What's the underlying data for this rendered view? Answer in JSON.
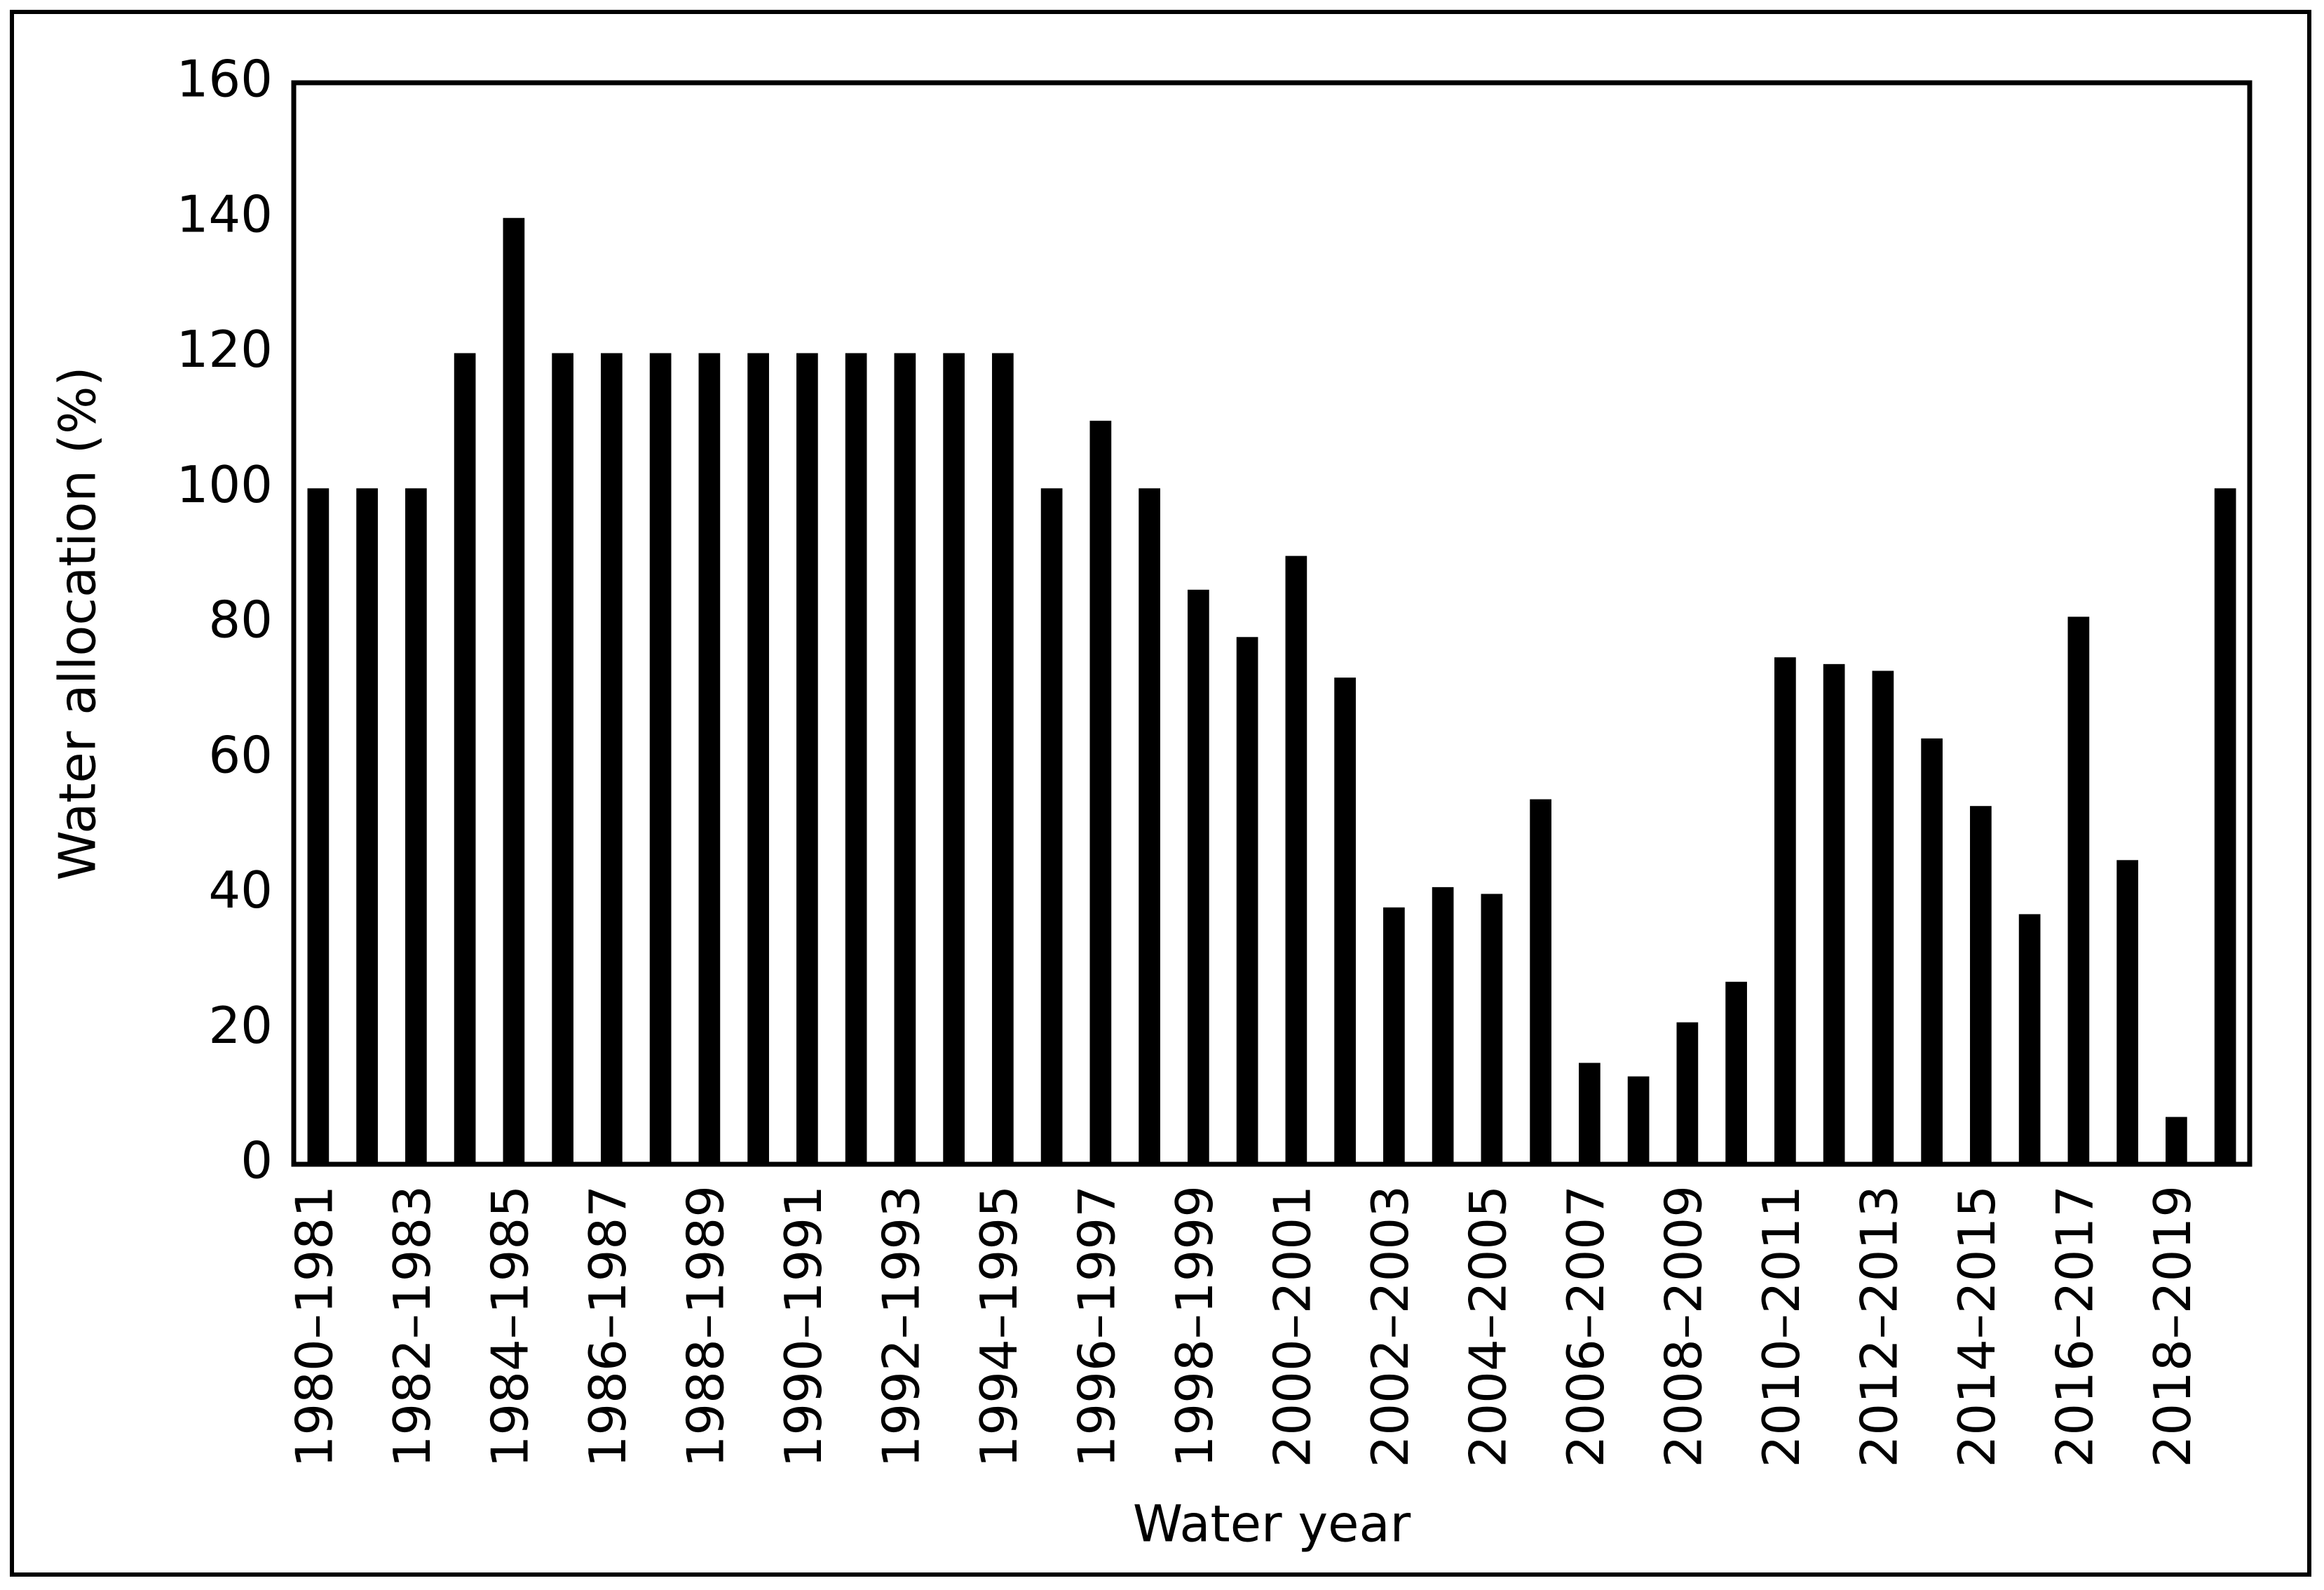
{
  "chart_data": {
    "type": "bar",
    "x_label": "Water year",
    "y_label": "Water allocation (%)",
    "categories": [
      "1980–1981",
      null,
      "1982–1983",
      null,
      "1984–1985",
      null,
      "1986–1987",
      null,
      "1988–1989",
      null,
      "1990–1991",
      null,
      "1992–1993",
      null,
      "1994–1995",
      null,
      "1996–1997",
      null,
      "1998–1999",
      null,
      "2000–2001",
      null,
      "2002–2003",
      null,
      "2004–2005",
      null,
      "2006–2007",
      null,
      "2008–2009",
      null,
      "2010–2011",
      null,
      "2012–2013",
      null,
      "2014–2015",
      null,
      "2016–2017",
      null,
      "2018–2019",
      null
    ],
    "values": [
      100,
      100,
      100,
      120,
      140,
      120,
      120,
      120,
      120,
      120,
      120,
      120,
      120,
      120,
      120,
      100,
      110,
      100,
      85,
      78,
      90,
      72,
      38,
      41,
      40,
      54,
      15,
      13,
      21,
      27,
      75,
      74,
      73,
      63,
      53,
      37,
      81,
      45,
      7,
      100
    ],
    "color": "#000000",
    "ylim": [
      0,
      160
    ],
    "yticks": [
      0,
      20,
      40,
      60,
      80,
      100,
      120,
      140,
      160
    ],
    "grid": false
  }
}
